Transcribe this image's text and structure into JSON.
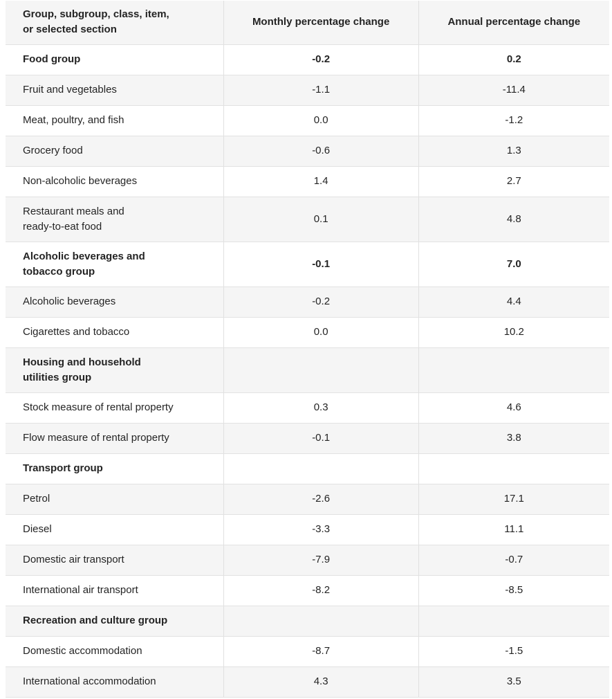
{
  "colors": {
    "stripe_bg": "#f5f5f5",
    "header_bg": "#f5f5f5",
    "border": "#e2e2e2",
    "text": "#242424",
    "page_bg": "#ffffff"
  },
  "chart_data": {
    "type": "table",
    "header": {
      "col1": "Group, subgroup, class, item,\nor selected section",
      "col2": "Monthly percentage change",
      "col3": "Annual percentage change"
    },
    "rows": [
      {
        "label": "Food group",
        "bold": true,
        "monthly": "-0.2",
        "annual": "0.2"
      },
      {
        "label": "Fruit and vegetables",
        "bold": false,
        "monthly": "-1.1",
        "annual": "-11.4"
      },
      {
        "label": "Meat, poultry, and fish",
        "bold": false,
        "monthly": "0.0",
        "annual": "-1.2"
      },
      {
        "label": "Grocery food",
        "bold": false,
        "monthly": "-0.6",
        "annual": "1.3"
      },
      {
        "label": "Non-alcoholic beverages",
        "bold": false,
        "monthly": "1.4",
        "annual": "2.7"
      },
      {
        "label": "Restaurant meals and\nready-to-eat food",
        "bold": false,
        "monthly": "0.1",
        "annual": "4.8"
      },
      {
        "label": "Alcoholic beverages and\ntobacco group",
        "bold": true,
        "monthly": "-0.1",
        "annual": "7.0"
      },
      {
        "label": "Alcoholic beverages",
        "bold": false,
        "monthly": "-0.2",
        "annual": "4.4"
      },
      {
        "label": "Cigarettes and tobacco",
        "bold": false,
        "monthly": "0.0",
        "annual": "10.2"
      },
      {
        "label": "Housing and household\nutilities group",
        "bold": true,
        "monthly": "",
        "annual": ""
      },
      {
        "label": "Stock measure of rental property",
        "bold": false,
        "monthly": "0.3",
        "annual": "4.6"
      },
      {
        "label": "Flow measure of rental property",
        "bold": false,
        "monthly": "-0.1",
        "annual": "3.8"
      },
      {
        "label": "Transport group",
        "bold": true,
        "monthly": "",
        "annual": ""
      },
      {
        "label": "Petrol",
        "bold": false,
        "monthly": "-2.6",
        "annual": "17.1"
      },
      {
        "label": "Diesel",
        "bold": false,
        "monthly": "-3.3",
        "annual": "11.1"
      },
      {
        "label": "Domestic air transport",
        "bold": false,
        "monthly": "-7.9",
        "annual": "-0.7"
      },
      {
        "label": "International air transport",
        "bold": false,
        "monthly": "-8.2",
        "annual": "-8.5"
      },
      {
        "label": "Recreation and culture group",
        "bold": true,
        "monthly": "",
        "annual": ""
      },
      {
        "label": "Domestic accommodation",
        "bold": false,
        "monthly": "-8.7",
        "annual": "-1.5"
      },
      {
        "label": "International accommodation",
        "bold": false,
        "monthly": "4.3",
        "annual": "3.5"
      }
    ]
  }
}
